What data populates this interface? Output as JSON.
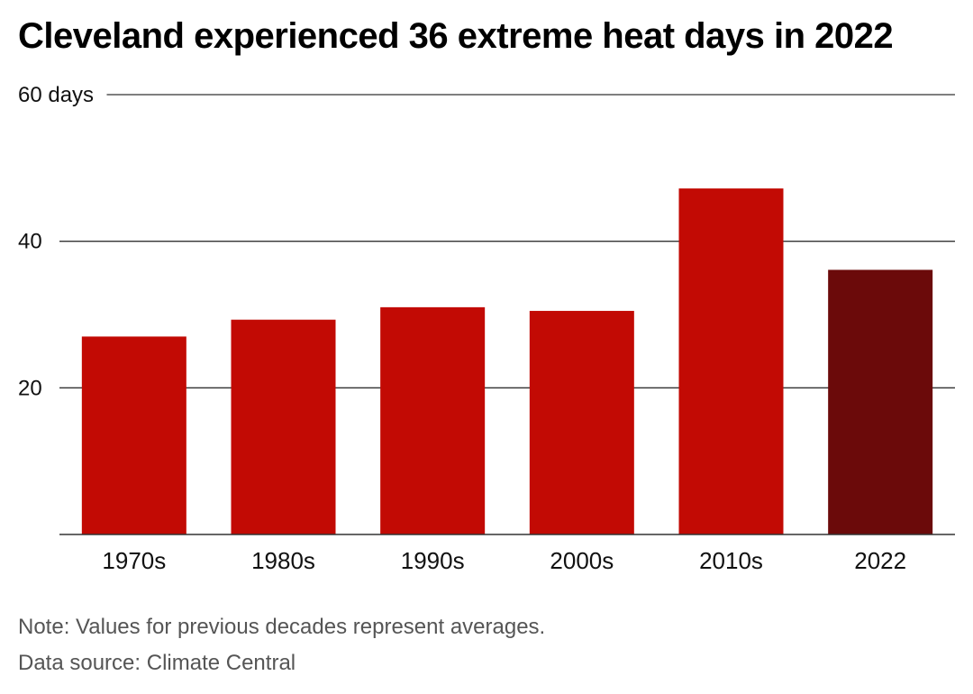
{
  "chart_data": {
    "type": "bar",
    "title": "Cleveland experienced 36 extreme heat days in 2022",
    "categories": [
      "1970s",
      "1980s",
      "1990s",
      "2000s",
      "2010s",
      "2022"
    ],
    "values": [
      27,
      29.3,
      31,
      30.5,
      47.2,
      36.1
    ],
    "highlight_index": 5,
    "ylim": [
      0,
      60
    ],
    "yticks": [
      {
        "value": 20,
        "label": "20"
      },
      {
        "value": 40,
        "label": "40"
      },
      {
        "value": 60,
        "label": "60 days"
      }
    ],
    "grid": true,
    "legend": "none",
    "colors": {
      "bar": "#c20a04",
      "highlight": "#6b0a0a",
      "grid": "#333333",
      "axis": "#333333"
    }
  },
  "footer": {
    "note": "Note: Values for previous decades represent averages.",
    "source": "Data source: Climate Central"
  }
}
